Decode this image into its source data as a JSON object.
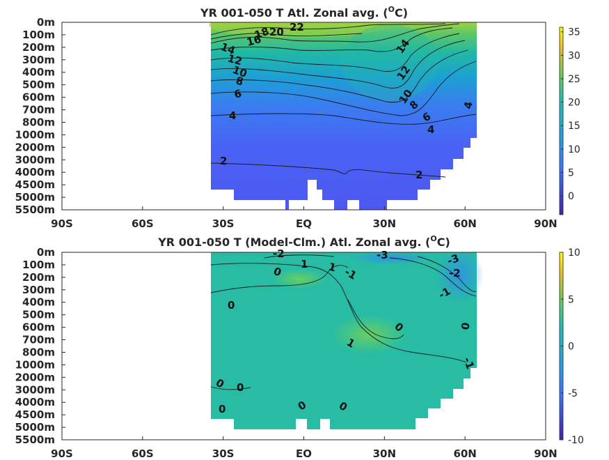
{
  "chart_data": [
    {
      "type": "heatmap",
      "title": "YR 001-050 T Atl. Zonal avg. (",
      "title_unit": "O",
      "title_unit_suffix": "C)",
      "x_ticks": [
        "90S",
        "60S",
        "30S",
        "EQ",
        "30N",
        "60N",
        "90N"
      ],
      "x_values": [
        -90,
        -60,
        -30,
        0,
        30,
        60,
        90
      ],
      "y_ticks": [
        "0m",
        "100m",
        "200m",
        "300m",
        "400m",
        "500m",
        "600m",
        "700m",
        "800m",
        "1000m",
        "2000m",
        "3000m",
        "4000m",
        "4500m",
        "5000m",
        "5500m"
      ],
      "colorbar_ticks": [
        "35",
        "30",
        "25",
        "20",
        "15",
        "10",
        "5",
        "0"
      ],
      "colorbar_values": [
        35,
        30,
        25,
        20,
        15,
        10,
        5,
        0
      ],
      "colorbar_range": [
        -4,
        36
      ],
      "lat_extent": [
        -34,
        63
      ],
      "contour_labels": [
        "22",
        "20",
        "18",
        "16",
        "14",
        "12",
        "10",
        "8",
        "6",
        "4",
        "2",
        "14",
        "12",
        "10",
        "8",
        "6",
        "4",
        "4",
        "2"
      ]
    },
    {
      "type": "heatmap",
      "title": "YR 001-050 T (Model-Clm.) Atl. Zonal avg. (",
      "title_unit": "O",
      "title_unit_suffix": "C)",
      "x_ticks": [
        "90S",
        "60S",
        "30S",
        "EQ",
        "30N",
        "60N",
        "90N"
      ],
      "x_values": [
        -90,
        -60,
        -30,
        0,
        30,
        60,
        90
      ],
      "y_ticks": [
        "0m",
        "100m",
        "200m",
        "300m",
        "400m",
        "500m",
        "600m",
        "700m",
        "800m",
        "1000m",
        "2000m",
        "3000m",
        "4000m",
        "4500m",
        "5000m",
        "5500m"
      ],
      "colorbar_ticks": [
        "10",
        "5",
        "0",
        "-5",
        "-10"
      ],
      "colorbar_values": [
        10,
        5,
        0,
        -5,
        -10
      ],
      "colorbar_range": [
        -10,
        10
      ],
      "lat_extent": [
        -34,
        63
      ],
      "contour_labels": [
        "-2",
        "0",
        "1",
        "1",
        "-1",
        "-3",
        "-3",
        "-2",
        "-1",
        "0",
        "0",
        "1",
        "0",
        "-1",
        "0",
        "0",
        "0",
        "0",
        "0"
      ]
    }
  ]
}
